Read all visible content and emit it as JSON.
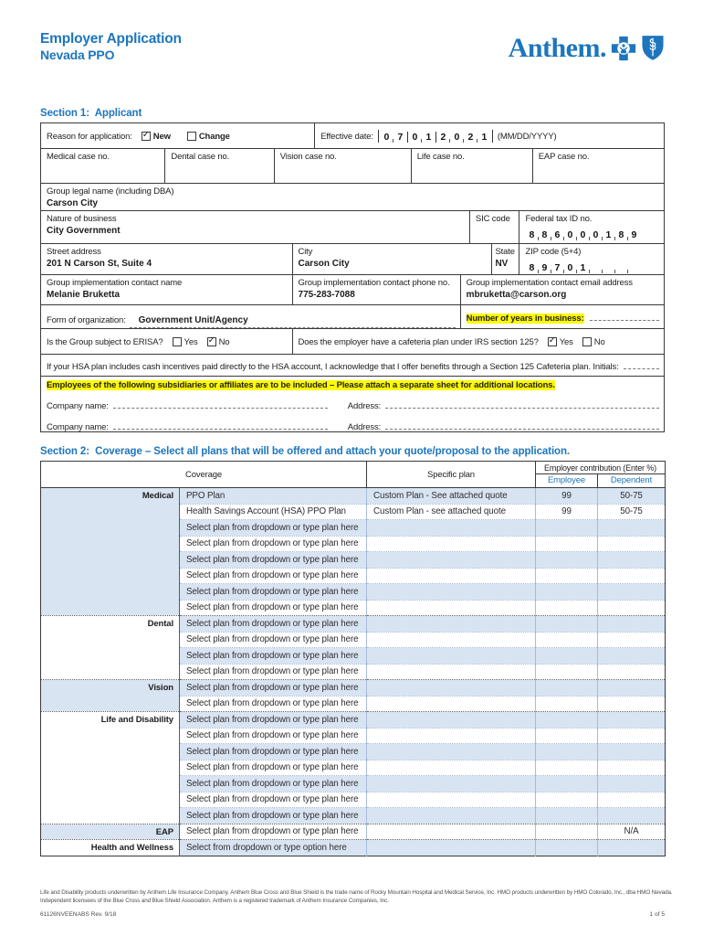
{
  "colors": {
    "brand_blue": "#1d76bd",
    "row_shade": "#d9e4f2",
    "highlight_yellow": "#fdf900"
  },
  "header": {
    "title_line1": "Employer Application",
    "title_line2": "Nevada PPO",
    "logo_text": "Anthem."
  },
  "section1": {
    "heading": "Section 1:  Applicant",
    "reason_label": "Reason for application:",
    "reason_new": {
      "label": "New",
      "checked": true
    },
    "reason_change": {
      "label": "Change",
      "checked": false
    },
    "effective_date_label": "Effective date:",
    "effective_date_groups": [
      [
        "0",
        "7"
      ],
      [
        "0",
        "1"
      ],
      [
        "2",
        "0",
        "2",
        "1"
      ]
    ],
    "effective_date_format": "(MM/DD/YYYY)",
    "case_fields": [
      {
        "label": "Medical case no.",
        "value": ""
      },
      {
        "label": "Dental case no.",
        "value": ""
      },
      {
        "label": "Vision case no.",
        "value": ""
      },
      {
        "label": "Life case no.",
        "value": ""
      },
      {
        "label": "EAP case no.",
        "value": ""
      }
    ],
    "group_legal_name_label": "Group legal name (including DBA)",
    "group_legal_name_value": "Carson City",
    "nature_label": "Nature of business",
    "nature_value": "City Government",
    "sic_label": "SIC code",
    "sic_value": "",
    "fed_tax_label": "Federal tax ID no.",
    "fed_tax_digits": [
      "8",
      "8",
      "6",
      "0",
      "0",
      "0",
      "1",
      "8",
      "9"
    ],
    "street_label": "Street address",
    "street_value": "201 N Carson St, Suite 4",
    "city_label": "City",
    "city_value": "Carson City",
    "state_label": "State",
    "state_value": "NV",
    "zip_label": "ZIP code (5+4)",
    "zip_digits": [
      "8",
      "9",
      "7",
      "0",
      "1",
      "",
      "",
      "",
      ""
    ],
    "contact_name_label": "Group implementation contact name",
    "contact_name_value": "Melanie Bruketta",
    "contact_phone_label": "Group implementation contact phone no.",
    "contact_phone_value": "775-283-7088",
    "contact_email_label": "Group implementation contact email address",
    "contact_email_value": "mbruketta@carson.org",
    "form_org_label": "Form of organization:",
    "form_org_value": "Government Unit/Agency",
    "years_label": "Number of years in business:",
    "erisa_label": "Is the Group subject to ERISA?",
    "erisa_yes": {
      "label": "Yes",
      "checked": false
    },
    "erisa_no": {
      "label": "No",
      "checked": true
    },
    "cafeteria_label": "Does the employer have a cafeteria plan under IRS section 125?",
    "cafeteria_yes": {
      "label": "Yes",
      "checked": true
    },
    "cafeteria_no": {
      "label": "No",
      "checked": false
    },
    "hsa_text": "If your HSA plan includes cash incentives paid directly to the HSA account, I acknowledge that I offer benefits through a Section 125 Cafeteria plan. Initials:",
    "subsidiaries_note": "Employees of the following subsidiaries or affiliates are to be included – Please attach a separate sheet for additional locations.",
    "company_label": "Company name:",
    "address_label": "Address:"
  },
  "section2": {
    "heading": "Section 2:  Coverage – Select all plans that will be offered and attach your quote/proposal to the application.",
    "table": {
      "col_coverage": "Coverage",
      "col_specific_plan": "Specific plan",
      "col_contribution": "Employer contribution (Enter %)",
      "col_employee": "Employee",
      "col_dependent": "Dependent",
      "groups": [
        {
          "category": "Medical",
          "rows": [
            {
              "plan": "PPO Plan",
              "specific": "Custom Plan - See attached quote",
              "employee": "99",
              "dependent": "50-75"
            },
            {
              "plan": "Health Savings Account (HSA) PPO Plan",
              "specific": "Custom Plan - see attached quote",
              "employee": "99",
              "dependent": "50-75"
            },
            {
              "plan": "Select plan from dropdown or type plan here",
              "specific": "",
              "employee": "",
              "dependent": ""
            },
            {
              "plan": "Select plan from dropdown or type plan here",
              "specific": "",
              "employee": "",
              "dependent": ""
            },
            {
              "plan": "Select plan from dropdown or type plan here",
              "specific": "",
              "employee": "",
              "dependent": ""
            },
            {
              "plan": "Select plan from dropdown or type plan here",
              "specific": "",
              "employee": "",
              "dependent": ""
            },
            {
              "plan": "Select plan from dropdown or type plan here",
              "specific": "",
              "employee": "",
              "dependent": ""
            },
            {
              "plan": "Select plan from dropdown or type plan here",
              "specific": "",
              "employee": "",
              "dependent": ""
            }
          ]
        },
        {
          "category": "Dental",
          "rows": [
            {
              "plan": "Select plan from dropdown or type plan here",
              "specific": "",
              "employee": "",
              "dependent": ""
            },
            {
              "plan": "Select plan from dropdown or type plan here",
              "specific": "",
              "employee": "",
              "dependent": ""
            },
            {
              "plan": "Select plan from dropdown or type plan here",
              "specific": "",
              "employee": "",
              "dependent": ""
            },
            {
              "plan": "Select plan from dropdown or type plan here",
              "specific": "",
              "employee": "",
              "dependent": ""
            }
          ]
        },
        {
          "category": "Vision",
          "rows": [
            {
              "plan": "Select plan from dropdown or type plan here",
              "specific": "",
              "employee": "",
              "dependent": ""
            },
            {
              "plan": "Select plan from dropdown or type plan here",
              "specific": "",
              "employee": "",
              "dependent": ""
            }
          ]
        },
        {
          "category": "Life and Disability",
          "rows": [
            {
              "plan": "Select plan from dropdown or type plan here",
              "specific": "",
              "employee": "",
              "dependent": ""
            },
            {
              "plan": "Select plan from dropdown or type plan here",
              "specific": "",
              "employee": "",
              "dependent": ""
            },
            {
              "plan": "Select plan from dropdown or type plan here",
              "specific": "",
              "employee": "",
              "dependent": ""
            },
            {
              "plan": "Select plan from dropdown or type plan here",
              "specific": "",
              "employee": "",
              "dependent": ""
            },
            {
              "plan": "Select plan from dropdown or type plan here",
              "specific": "",
              "employee": "",
              "dependent": ""
            },
            {
              "plan": "Select plan from dropdown or type plan here",
              "specific": "",
              "employee": "",
              "dependent": ""
            },
            {
              "plan": "Select plan from dropdown or type plan here",
              "specific": "",
              "employee": "",
              "dependent": ""
            }
          ]
        },
        {
          "category": "EAP",
          "rows": [
            {
              "plan": "Select plan from dropdown or type plan here",
              "specific": "",
              "employee": "",
              "dependent": "N/A"
            }
          ]
        },
        {
          "category": "Health and Wellness",
          "rows": [
            {
              "plan": "Select from dropdown or type option here",
              "specific": "",
              "employee": "",
              "dependent": ""
            }
          ]
        }
      ]
    }
  },
  "footer": {
    "line1": "Life and Disability products underwritten by Anthem Life Insurance Company. Anthem Blue Cross and Blue Shield is the trade name of Rocky Mountain Hospital and Medical Service, Inc. HMO products underwritten by HMO Colorado, Inc., dba HMO Nevada.",
    "line2": "Independent licensees of the Blue Cross and Blue Shield Association. Anthem is a registered trademark of Anthem Insurance Companies, Inc.",
    "form_number": "61126NVEENABS  Rev. 9/18",
    "page": "1 of 5"
  }
}
